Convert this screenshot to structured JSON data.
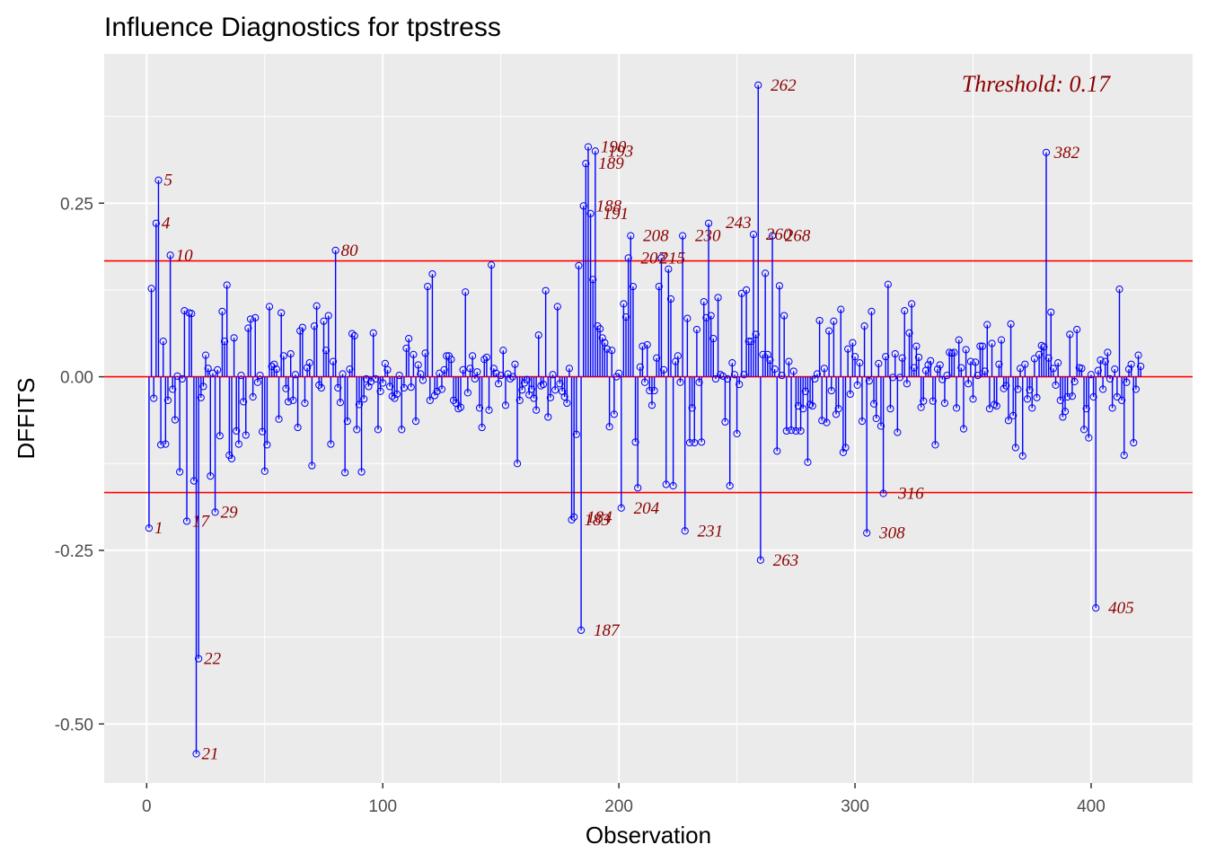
{
  "chart_data": {
    "type": "lollipop",
    "title": "Influence Diagnostics for tpstress",
    "xlabel": "Observation",
    "ylabel": "DFFITS",
    "xlim": [
      -18,
      443
    ],
    "ylim": [
      -0.585,
      0.465
    ],
    "x_ticks": [
      0,
      100,
      200,
      300,
      400
    ],
    "x_tick_labels": [
      "0",
      "100",
      "200",
      "300",
      "400"
    ],
    "y_ticks": [
      -0.5,
      -0.25,
      0.0,
      0.25
    ],
    "y_tick_labels": [
      "-0.50",
      "-0.25",
      "0.00",
      "0.25"
    ],
    "threshold": 0.1668,
    "threshold_label": "Threshold: 0.17",
    "colors": {
      "panel_background": "#ebebeb",
      "grid": "#ffffff",
      "stems": "#0000ff",
      "reference_lines": "#ff0000",
      "labels": "#8b0000"
    },
    "labeled_points": [
      {
        "obs": 1,
        "value": -0.218,
        "label": "1"
      },
      {
        "obs": 4,
        "value": 0.221,
        "label": "4"
      },
      {
        "obs": 5,
        "value": 0.283,
        "label": "5"
      },
      {
        "obs": 10,
        "value": 0.175,
        "label": "10"
      },
      {
        "obs": 17,
        "value": -0.208,
        "label": "17"
      },
      {
        "obs": 21,
        "value": -0.543,
        "label": "21"
      },
      {
        "obs": 22,
        "value": -0.406,
        "label": "22"
      },
      {
        "obs": 29,
        "value": -0.195,
        "label": "29"
      },
      {
        "obs": 80,
        "value": 0.182,
        "label": "80"
      },
      {
        "obs": 183,
        "value": -0.206,
        "label": "183"
      },
      {
        "obs": 184,
        "value": -0.202,
        "label": "184"
      },
      {
        "obs": 187,
        "value": -0.365,
        "label": "187"
      },
      {
        "obs": 188,
        "value": 0.246,
        "label": "188"
      },
      {
        "obs": 189,
        "value": 0.307,
        "label": "189"
      },
      {
        "obs": 190,
        "value": 0.331,
        "label": "190"
      },
      {
        "obs": 191,
        "value": 0.235,
        "label": "191"
      },
      {
        "obs": 193,
        "value": 0.325,
        "label": "193"
      },
      {
        "obs": 204,
        "value": -0.189,
        "label": "204"
      },
      {
        "obs": 207,
        "value": 0.171,
        "label": "207"
      },
      {
        "obs": 208,
        "value": 0.203,
        "label": "208"
      },
      {
        "obs": 215,
        "value": 0.171,
        "label": "215"
      },
      {
        "obs": 230,
        "value": 0.203,
        "label": "230"
      },
      {
        "obs": 231,
        "value": -0.222,
        "label": "231"
      },
      {
        "obs": 243,
        "value": 0.222,
        "label": "243"
      },
      {
        "obs": 260,
        "value": 0.205,
        "label": "260"
      },
      {
        "obs": 262,
        "value": 0.42,
        "label": "262"
      },
      {
        "obs": 263,
        "value": -0.264,
        "label": "263"
      },
      {
        "obs": 268,
        "value": 0.203,
        "label": "268"
      },
      {
        "obs": 308,
        "value": -0.225,
        "label": "308"
      },
      {
        "obs": 316,
        "value": -0.168,
        "label": "316"
      },
      {
        "obs": 382,
        "value": 0.323,
        "label": "382"
      },
      {
        "obs": 405,
        "value": -0.333,
        "label": "405"
      }
    ],
    "series": [
      {
        "values": [
          -0.218,
          0.127,
          -0.031,
          0.221,
          0.283,
          -0.098,
          0.051,
          -0.097,
          -0.034,
          0.175,
          -0.018,
          -0.062,
          0.001,
          -0.137,
          -0.003,
          0.095,
          -0.208,
          0.092,
          0.091,
          -0.15,
          -0.543,
          -0.406,
          -0.03,
          -0.014,
          0.031,
          0.012,
          -0.143,
          0.005,
          -0.195,
          0.01,
          -0.085,
          0.094,
          0.051,
          0.132,
          -0.113,
          -0.118,
          0.056,
          -0.078,
          -0.097,
          0.002,
          -0.036,
          -0.084,
          0.07,
          0.083,
          -0.029,
          0.085,
          -0.008,
          0.002,
          -0.079,
          -0.136,
          -0.098,
          0.101,
          0.015,
          0.018,
          0.011,
          -0.061,
          0.092,
          0.03,
          -0.017,
          -0.036,
          0.033,
          -0.034,
          0.003,
          -0.073,
          0.066,
          0.071,
          -0.038,
          0.013,
          0.02,
          -0.128,
          0.073,
          0.102,
          -0.012,
          -0.016,
          0.08,
          0.038,
          0.088,
          -0.097,
          0.022,
          0.182,
          -0.016,
          -0.037,
          0.004,
          -0.138,
          -0.064,
          0.011,
          0.062,
          0.059,
          -0.076,
          -0.04,
          -0.137,
          -0.032,
          -0.003,
          -0.014,
          -0.007,
          0.063,
          -0.003,
          -0.076,
          -0.021,
          -0.009,
          0.019,
          0.01,
          -0.014,
          -0.028,
          -0.031,
          -0.025,
          0.002,
          -0.076,
          -0.016,
          0.041,
          0.055,
          -0.015,
          0.032,
          -0.064,
          0.017,
          0.004,
          -0.005,
          0.034,
          0.13,
          -0.034,
          0.148,
          -0.027,
          -0.021,
          0.005,
          -0.018,
          0.01,
          0.03,
          0.03,
          0.025,
          -0.034,
          -0.038,
          -0.046,
          -0.044,
          0.01,
          0.122,
          -0.023,
          0.012,
          0.03,
          -0.003,
          0.007,
          -0.045,
          -0.073,
          0.025,
          0.028,
          -0.048,
          0.161,
          0.012,
          0.005,
          -0.01,
          0.002,
          0.038,
          -0.041,
          0.004,
          -0.003,
          0.0,
          0.018,
          -0.125,
          -0.034,
          -0.019,
          -0.009,
          -0.004,
          -0.026,
          -0.018,
          -0.031,
          -0.048,
          0.06,
          -0.013,
          -0.011,
          0.124,
          -0.058,
          -0.03,
          0.003,
          -0.019,
          0.101,
          -0.01,
          -0.021,
          -0.029,
          -0.038,
          0.012,
          -0.206,
          -0.202,
          -0.083,
          0.16,
          -0.365,
          0.246,
          0.307,
          0.331,
          0.235,
          0.14,
          0.325,
          0.073,
          0.069,
          0.056,
          0.049,
          0.04,
          -0.072,
          0.038,
          -0.054,
          0.0,
          0.005,
          -0.189,
          0.105,
          0.086,
          0.171,
          0.203,
          0.13,
          -0.094,
          -0.16,
          0.014,
          0.044,
          -0.008,
          0.046,
          -0.02,
          -0.041,
          -0.02,
          0.027,
          0.13,
          0.171,
          0.01,
          -0.155,
          0.155,
          0.112,
          -0.157,
          0.022,
          0.03,
          -0.008,
          0.203,
          -0.222,
          0.084,
          -0.095,
          -0.045,
          -0.095,
          0.068,
          -0.008,
          -0.094,
          0.108,
          0.085,
          0.221,
          0.088,
          0.055,
          -0.003,
          0.114,
          0.003,
          0.001,
          -0.065,
          -0.003,
          -0.157,
          0.02,
          0.003,
          -0.082,
          -0.011,
          0.12,
          0.003,
          0.125,
          0.051,
          0.051,
          0.205,
          0.061,
          0.42,
          -0.264,
          0.032,
          0.149,
          0.032,
          0.024,
          0.203,
          0.011,
          -0.107,
          0.131,
          0.002,
          0.088,
          -0.078,
          0.022,
          -0.077,
          0.008,
          -0.078,
          -0.042,
          -0.078,
          -0.046,
          -0.021,
          -0.123,
          -0.04,
          -0.042,
          -0.003,
          0.004,
          0.081,
          -0.063,
          0.012,
          -0.066,
          0.066,
          -0.02,
          0.08,
          -0.054,
          -0.046,
          0.097,
          -0.109,
          -0.102,
          0.04,
          -0.025,
          0.049,
          0.029,
          -0.012,
          0.02,
          -0.064,
          0.073,
          -0.225,
          -0.006,
          0.094,
          -0.039,
          -0.06,
          0.019,
          -0.071,
          -0.168,
          0.029,
          0.133,
          -0.046,
          -0.001,
          0.033,
          -0.08,
          -0.001,
          0.027,
          0.095,
          -0.01,
          0.063,
          0.105,
          0.013,
          0.044,
          0.028,
          -0.044,
          -0.035,
          0.009,
          0.017,
          0.023,
          -0.035,
          -0.098,
          0.011,
          0.017,
          -0.004,
          -0.038,
          0.002,
          0.035,
          0.034,
          0.035,
          -0.045,
          0.053,
          0.013,
          -0.075,
          0.039,
          -0.01,
          0.022,
          -0.032,
          0.021,
          0.002,
          0.044,
          0.044,
          0.008,
          0.075,
          -0.046,
          0.048,
          -0.04,
          -0.042,
          0.018,
          0.053,
          -0.017,
          -0.013,
          -0.063,
          0.076,
          -0.056,
          -0.102,
          -0.018,
          0.012,
          -0.114,
          0.018,
          -0.032,
          -0.019,
          -0.045,
          0.026,
          -0.03,
          0.032,
          0.045,
          0.043,
          0.323,
          0.027,
          0.093,
          0.012,
          -0.012,
          0.02,
          -0.034,
          -0.058,
          -0.05,
          -0.029,
          0.061,
          -0.028,
          -0.007,
          0.068,
          0.013,
          0.012,
          -0.076,
          -0.046,
          -0.088,
          0.003,
          -0.029,
          -0.333,
          0.009,
          0.024,
          -0.018,
          0.022,
          0.035,
          -0.003,
          -0.045,
          0.011,
          -0.029,
          0.126,
          -0.034,
          -0.113,
          -0.008,
          0.011,
          0.018,
          -0.095,
          -0.018,
          0.031,
          0.015
        ]
      }
    ]
  }
}
